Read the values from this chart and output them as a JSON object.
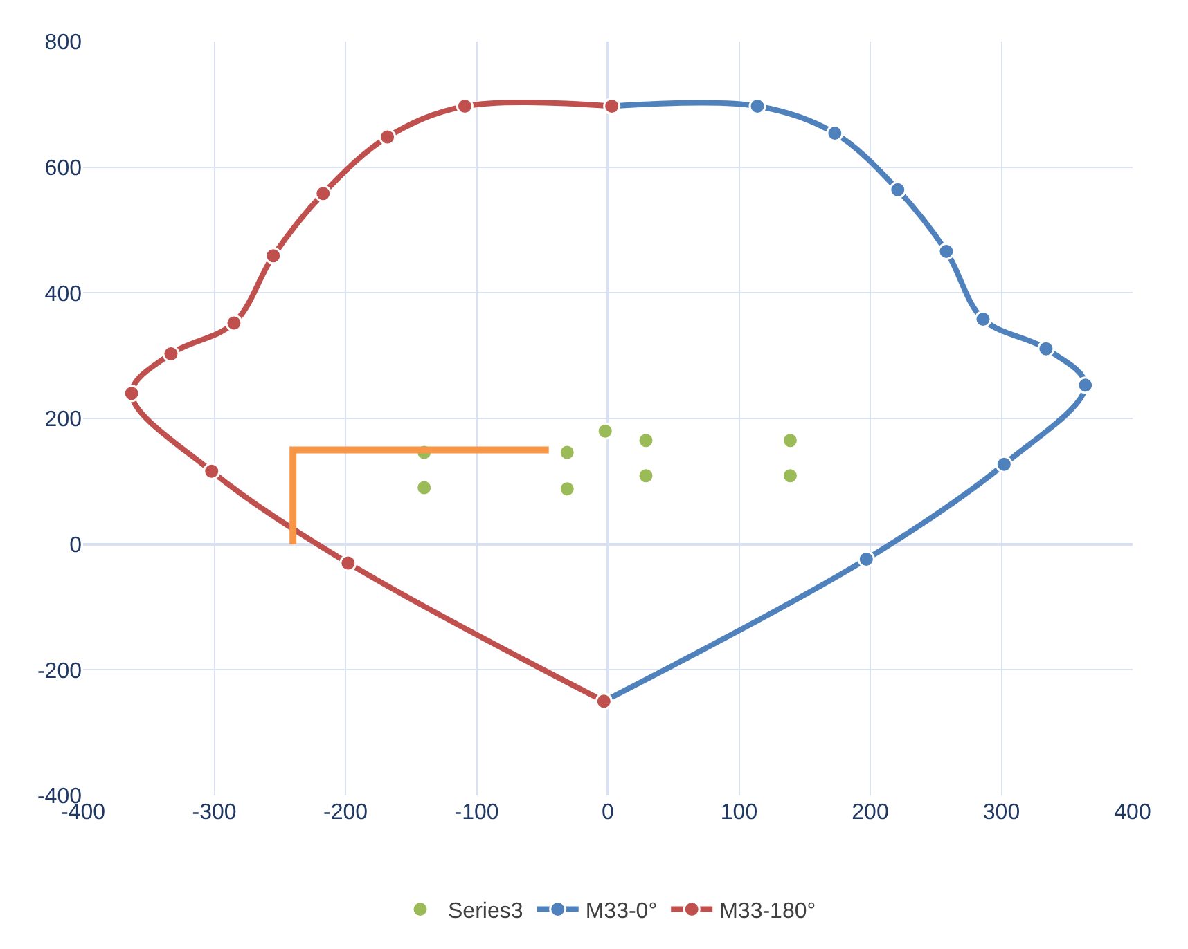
{
  "chart_data": {
    "type": "scatter",
    "xlim": [
      -400,
      400
    ],
    "ylim": [
      -400,
      800
    ],
    "xticks": [
      -400,
      -300,
      -200,
      -100,
      0,
      100,
      200,
      300,
      400
    ],
    "yticks": [
      -400,
      -200,
      0,
      200,
      400,
      600,
      800
    ],
    "grid": true,
    "legend": "bottom",
    "marker": "circle",
    "series": [
      {
        "name": "Series3",
        "color": "#9bbb59",
        "x": [
          -140,
          -140,
          -31,
          -31,
          -2,
          29,
          29,
          139,
          139
        ],
        "values": [
          146,
          90,
          146,
          88,
          180,
          165,
          109,
          165,
          109
        ]
      },
      {
        "name": "M33-0°",
        "type": "line",
        "color": "#4f81bd",
        "x": [
          3,
          114,
          173,
          221,
          258,
          286,
          334,
          364,
          302,
          197,
          -3
        ],
        "values": [
          697,
          697,
          654,
          564,
          466,
          358,
          311,
          253,
          127,
          -24,
          -250
        ]
      },
      {
        "name": "M33-180°",
        "type": "line",
        "color": "#c0504d",
        "x": [
          3,
          -109,
          -168,
          -217,
          -255,
          -285,
          -333,
          -363,
          -302,
          -198,
          -3
        ],
        "values": [
          697,
          697,
          648,
          558,
          459,
          352,
          303,
          240,
          116,
          -30,
          -250
        ]
      },
      {
        "type": "line",
        "marker": "none",
        "color": "#f79646",
        "x": [
          -240,
          -240,
          -45
        ],
        "values": [
          0,
          150,
          150
        ]
      }
    ]
  }
}
